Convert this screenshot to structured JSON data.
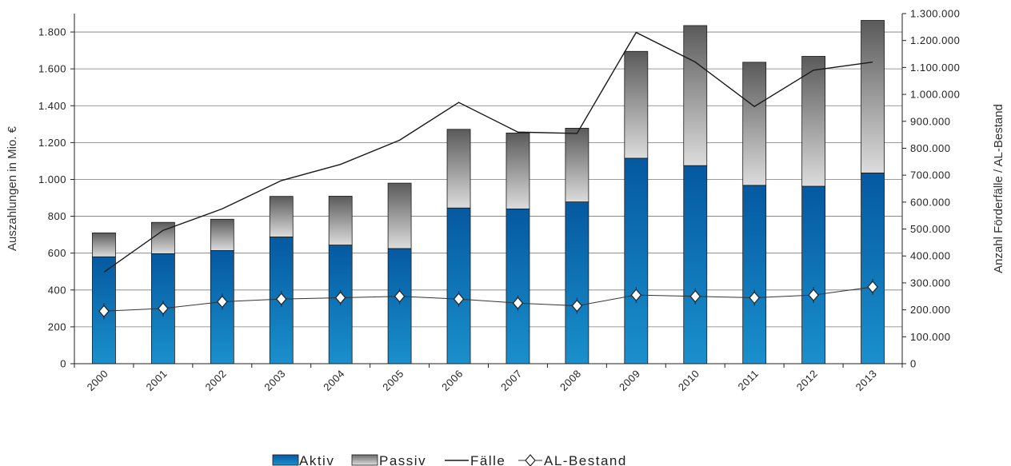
{
  "chart_data": {
    "type": "bar",
    "stacked": true,
    "categories": [
      "2000",
      "2001",
      "2002",
      "2003",
      "2004",
      "2005",
      "2006",
      "2007",
      "2008",
      "2009",
      "2010",
      "2011",
      "2012",
      "2013"
    ],
    "series": [
      {
        "name": "Aktiv",
        "type": "bar",
        "axis": "left",
        "color": "#0a6fb4",
        "values": [
          580,
          597,
          614,
          688,
          644,
          625,
          845,
          840,
          878,
          1115,
          1075,
          968,
          963,
          1035
        ]
      },
      {
        "name": "Passiv",
        "type": "bar",
        "axis": "left",
        "color": "#8a8a8a",
        "values": [
          130,
          170,
          170,
          220,
          265,
          355,
          427,
          412,
          400,
          580,
          760,
          668,
          705,
          828
        ]
      },
      {
        "name": "Fälle",
        "type": "line",
        "axis": "right",
        "color": "#1a1a1a",
        "values": [
          340000,
          495000,
          575000,
          680000,
          740000,
          830000,
          970000,
          860000,
          855000,
          1230000,
          1120000,
          955000,
          1090000,
          1120000
        ]
      },
      {
        "name": "AL-Bestand",
        "type": "line",
        "axis": "right",
        "marker": "diamond",
        "color": "#333333",
        "values": [
          195000,
          205000,
          230000,
          240000,
          245000,
          250000,
          240000,
          225000,
          215000,
          255000,
          250000,
          245000,
          255000,
          285000
        ]
      }
    ],
    "y_left": {
      "label": "Auszahlungen in Mio. €",
      "range": [
        0,
        1900
      ],
      "ticks": [
        0,
        200,
        400,
        600,
        800,
        1000,
        1200,
        1400,
        1600,
        1800
      ],
      "tick_labels": [
        "0",
        "200",
        "400",
        "600",
        "800",
        "1.000",
        "1.200",
        "1.400",
        "1.600",
        "1.800"
      ]
    },
    "y_right": {
      "label": "Anzahl Förderfälle / AL-Bestand",
      "range": [
        0,
        1300000
      ],
      "ticks": [
        0,
        100000,
        200000,
        300000,
        400000,
        500000,
        600000,
        700000,
        800000,
        900000,
        1000000,
        1100000,
        1200000,
        1300000
      ],
      "tick_labels": [
        "0",
        "100.000",
        "200.000",
        "300.000",
        "400.000",
        "500.000",
        "600.000",
        "700.000",
        "800.000",
        "900.000",
        "1.000.000",
        "1.100.000",
        "1.200.000",
        "1.300.000"
      ]
    },
    "grid": true,
    "legend_position": "bottom",
    "legend": [
      "Aktiv",
      "Passiv",
      "Fälle",
      "AL-Bestand"
    ]
  }
}
